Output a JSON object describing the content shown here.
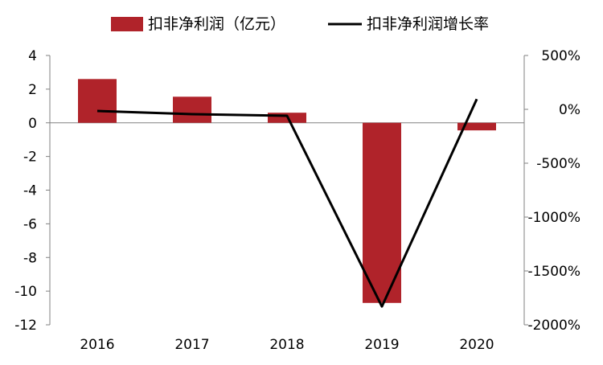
{
  "chart_data": {
    "type": "bar",
    "categories": [
      "2016",
      "2017",
      "2018",
      "2019",
      "2020"
    ],
    "series": [
      {
        "name": "扣非净利润（亿元）",
        "type": "bar",
        "axis": "left",
        "color": "#B0232A",
        "values": [
          2.6,
          1.55,
          0.6,
          -10.7,
          -0.45
        ]
      },
      {
        "name": "扣非净利润增长率",
        "type": "line",
        "axis": "right",
        "color": "#000000",
        "values": [
          -15,
          -45,
          -60,
          -1830,
          95
        ]
      }
    ],
    "y_left": {
      "min": -12,
      "max": 4,
      "step": 2,
      "tick_labels": [
        "4",
        "2",
        "0",
        "-2",
        "-4",
        "-6",
        "-8",
        "-10",
        "-12"
      ]
    },
    "y_right": {
      "min": -2000,
      "max": 500,
      "step": 500,
      "tick_labels": [
        "500%",
        "0%",
        "-500%",
        "-1000%",
        "-1500%",
        "-2000%"
      ]
    },
    "grid": false,
    "legend_position": "top"
  }
}
